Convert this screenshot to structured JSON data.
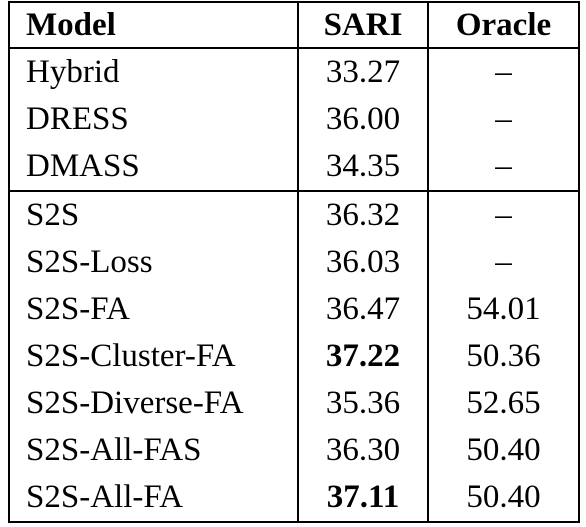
{
  "table": {
    "headers": [
      "Model",
      "SARI",
      "Oracle"
    ],
    "rows": [
      {
        "model": "Hybrid",
        "sari": "33.27",
        "oracle": "–"
      },
      {
        "model": "DRESS",
        "sari": "36.00",
        "oracle": "–"
      },
      {
        "model": "DMASS",
        "sari": "34.35",
        "oracle": "–"
      },
      {
        "model": "S2S",
        "sari": "36.32",
        "oracle": "–"
      },
      {
        "model": "S2S-Loss",
        "sari": "36.03",
        "oracle": "–"
      },
      {
        "model": "S2S-FA",
        "sari": "36.47",
        "oracle": "54.01"
      },
      {
        "model": "S2S-Cluster-FA",
        "sari": "37.22",
        "oracle": "50.36"
      },
      {
        "model": "S2S-Diverse-FA",
        "sari": "35.36",
        "oracle": "52.65"
      },
      {
        "model": "S2S-All-FAS",
        "sari": "36.30",
        "oracle": "50.40"
      },
      {
        "model": "S2S-All-FA",
        "sari": "37.11",
        "oracle": "50.40"
      }
    ]
  }
}
